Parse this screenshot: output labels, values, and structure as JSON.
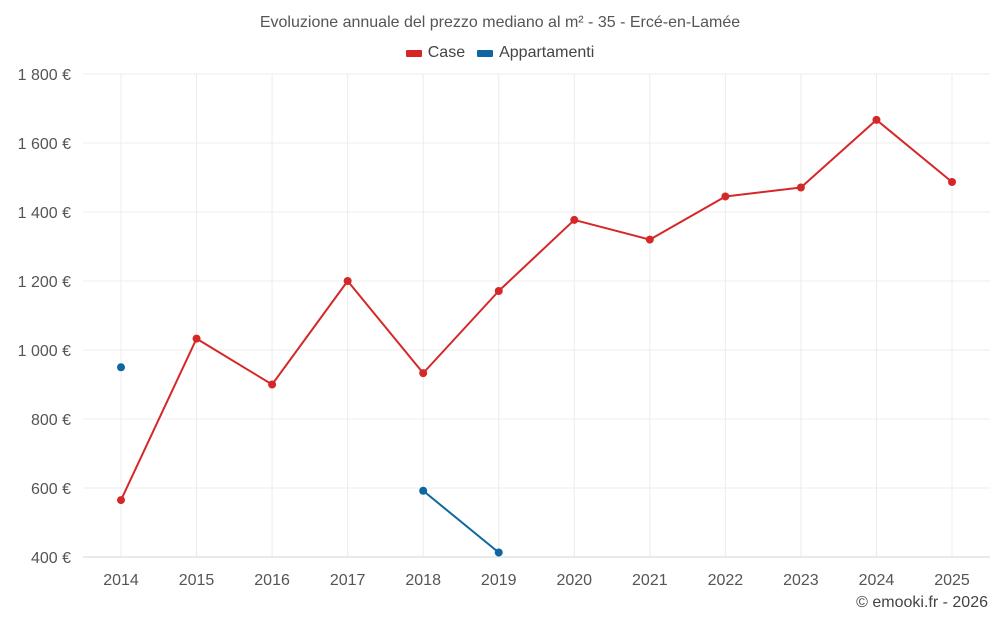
{
  "chart_data": {
    "type": "line",
    "title": "Evoluzione annuale del prezzo mediano al m² - 35 - Ercé-en-Lamée",
    "categories": [
      "2014",
      "2015",
      "2016",
      "2017",
      "2018",
      "2019",
      "2020",
      "2021",
      "2022",
      "2023",
      "2024",
      "2025"
    ],
    "y_ticks": [
      400,
      600,
      800,
      1000,
      1200,
      1400,
      1600,
      1800
    ],
    "y_tick_labels": [
      "400 €",
      "600 €",
      "800 €",
      "1 000 €",
      "1 200 €",
      "1 400 €",
      "1 600 €",
      "1 800 €"
    ],
    "ylim": [
      400,
      1800
    ],
    "grid": true,
    "legend_position": "top-center",
    "series": [
      {
        "name": "Case",
        "color": "#d62728",
        "values": [
          565,
          1033,
          900,
          1200,
          933,
          1171,
          1377,
          1320,
          1445,
          1471,
          1667,
          1487
        ]
      },
      {
        "name": "Appartamenti",
        "color": "#0f67a0",
        "values": [
          950,
          null,
          null,
          null,
          592,
          413,
          null,
          null,
          null,
          null,
          null,
          null
        ]
      }
    ]
  },
  "credit": "© emooki.fr - 2026"
}
